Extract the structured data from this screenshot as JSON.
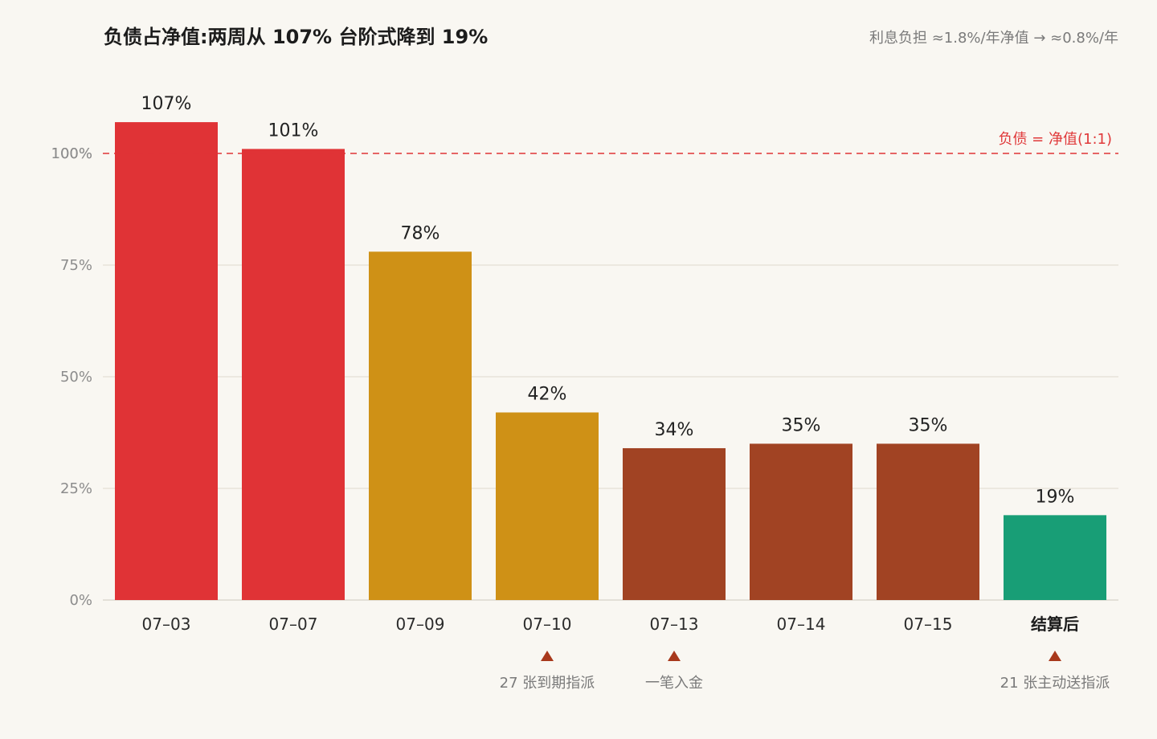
{
  "header": {
    "title": "负债占净值:两周从 107% 台阶式降到 19%",
    "subtitle": "利息负担 ≈1.8%/年净值 → ≈0.8%/年"
  },
  "chart_data": {
    "type": "bar",
    "categories": [
      "07–03",
      "07–07",
      "07–09",
      "07–10",
      "07–13",
      "07–14",
      "07–15",
      "结算后"
    ],
    "values": [
      107,
      101,
      78,
      42,
      34,
      35,
      35,
      19
    ],
    "value_labels": [
      "107%",
      "101%",
      "78%",
      "42%",
      "34%",
      "35%",
      "35%",
      "19%"
    ],
    "bar_colors": [
      "#e03336",
      "#e03336",
      "#cf9116",
      "#cf9116",
      "#a14323",
      "#a14323",
      "#a14323",
      "#189e76"
    ],
    "emphasized_category": "结算后",
    "ylim": [
      0,
      110
    ],
    "yticks": [
      0,
      25,
      50,
      75,
      100
    ],
    "ytick_labels": [
      "0%",
      "25%",
      "50%",
      "75%",
      "100%"
    ],
    "grid": true,
    "reference_line": {
      "value": 100,
      "label": "负债 = 净值(1:1)",
      "color": "#e03336",
      "style": "dashed"
    },
    "annotations": [
      {
        "category": "07–10",
        "text": "27 张到期指派",
        "marker": "▲",
        "color": "#a8391c"
      },
      {
        "category": "07–13",
        "text": "一笔入金",
        "marker": "▲",
        "color": "#a8391c"
      },
      {
        "category": "结算后",
        "text": "21 张主动送指派",
        "marker": "▲",
        "color": "#a8391c"
      }
    ]
  }
}
